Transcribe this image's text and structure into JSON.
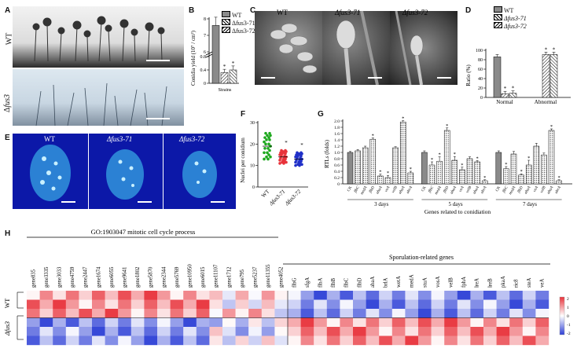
{
  "panels": {
    "A": {
      "label": "A",
      "row_wt": "WT",
      "row_mut_prefix": "Δ",
      "row_mut_gene": "fus3"
    },
    "B": {
      "label": "B",
      "chart_data": {
        "type": "bar",
        "ylabel": "Conidia yield (10⁷ / cm²)",
        "xlabel": "Strains",
        "yticks": [
          "0",
          "0.4",
          "0.8",
          "6",
          "7",
          "8"
        ],
        "series": [
          {
            "name": "WT",
            "value": 7.6,
            "error": 0.5
          },
          {
            "name": "Δfus3-71",
            "value": 0.32,
            "error": 0.1
          },
          {
            "name": "Δfus3-72",
            "value": 0.4,
            "error": 0.12
          }
        ],
        "star": "*",
        "legend": [
          "WT",
          "Δfus3-71",
          "Δfus3-72"
        ]
      }
    },
    "C": {
      "label": "C",
      "titles": [
        "WT",
        "Δfus3-71",
        "Δfus3-72"
      ]
    },
    "D": {
      "label": "D",
      "chart_data": {
        "type": "bar",
        "ylabel": "Ratio (%)",
        "ylim": [
          0,
          100
        ],
        "yticks": [
          "0",
          "20",
          "40",
          "60",
          "80",
          "100"
        ],
        "categories": [
          "Normal",
          "Abnormal"
        ],
        "series": [
          {
            "name": "WT",
            "values": [
              86,
              0
            ]
          },
          {
            "name": "Δfus3-71",
            "values": [
              8,
              91
            ]
          },
          {
            "name": "Δfus3-72",
            "values": [
              9,
              91
            ]
          }
        ],
        "star": "*",
        "legend": [
          "WT",
          "Δfus3-71",
          "Δfus3-72"
        ]
      }
    },
    "E": {
      "label": "E",
      "titles": [
        "WT",
        "Δfus3-71",
        "Δfus3-72"
      ]
    },
    "F": {
      "label": "F",
      "chart_data": {
        "type": "scatter",
        "ylabel": "Nuclei per conidium",
        "ylim": [
          0,
          30
        ],
        "yticks": [
          "0",
          "10",
          "20",
          "30"
        ],
        "categories": [
          "WT",
          "Δfus3-71",
          "Δfus3-72"
        ],
        "means": [
          19,
          14,
          13
        ],
        "star": "*"
      }
    },
    "G": {
      "label": "G",
      "chart_data": {
        "type": "bar",
        "ylabel": "RTLs (folds)",
        "ylim": [
          0,
          2.0
        ],
        "yticks": [
          "0",
          "0.2",
          "0.4",
          "0.6",
          "0.8",
          "1.0",
          "1.2",
          "1.4",
          "1.6",
          "1.8",
          "2.0"
        ],
        "xlabel": "Genes related to conidiation",
        "groups": [
          "3 days",
          "5 days",
          "7 days"
        ],
        "genes": [
          "CK",
          "flbC",
          "medA",
          "flbD",
          "abaA",
          "veA",
          "velB",
          "abaA",
          "abrA"
        ],
        "values": [
          [
            1.0,
            1.05,
            1.15,
            1.42,
            0.25,
            0.2,
            1.15,
            1.97,
            0.35
          ],
          [
            1.0,
            0.6,
            0.72,
            1.7,
            0.75,
            0.45,
            0.8,
            0.7,
            0.1
          ],
          [
            1.0,
            0.48,
            0.95,
            0.28,
            0.6,
            1.2,
            0.92,
            1.7,
            0.1
          ]
        ],
        "errors": [
          [
            0.03,
            0.04,
            0.05,
            0.04,
            0.06,
            0.07,
            0.03,
            0.04,
            0.05
          ],
          [
            0.05,
            0.1,
            0.14,
            0.08,
            0.12,
            0.08,
            0.06,
            0.04,
            0.03
          ],
          [
            0.05,
            0.07,
            0.08,
            0.04,
            0.15,
            0.09,
            0.06,
            0.05,
            0.03
          ]
        ],
        "star": "*"
      }
    },
    "H": {
      "label": "H",
      "group1_title": "GO:1903047 mitotic cell cycle process",
      "group2_title": "Sporulation-related genes",
      "row_wt": "WT",
      "row_mut": "Δfus3",
      "genes1": [
        "gene835",
        "gene3335",
        "gene3033",
        "gene4759",
        "gene2447",
        "gene1674",
        "gene6055",
        "gene9641",
        "gene1802",
        "gene5870",
        "gene2344",
        "gene5769",
        "gene10950",
        "gene6015",
        "gene11107",
        "gene1712",
        "gene795",
        "gene5237",
        "gene11355",
        "gene4052"
      ],
      "genes2": [
        "flbG",
        "sfgA",
        "flbA",
        "flbB",
        "flbC",
        "flbD",
        "abaA",
        "brlA",
        "wetA",
        "medA",
        "stuA",
        "vosA",
        "velB",
        "fphA",
        "lreA",
        "lreB",
        "pkaA",
        "ric8",
        "steA",
        "veA"
      ],
      "colorbar_ticks": [
        "2",
        "1",
        "0",
        "-1",
        "-2"
      ],
      "colors": {
        "high": "#e8323a",
        "mid": "#ffffff",
        "low": "#2d3fd6"
      }
    }
  }
}
